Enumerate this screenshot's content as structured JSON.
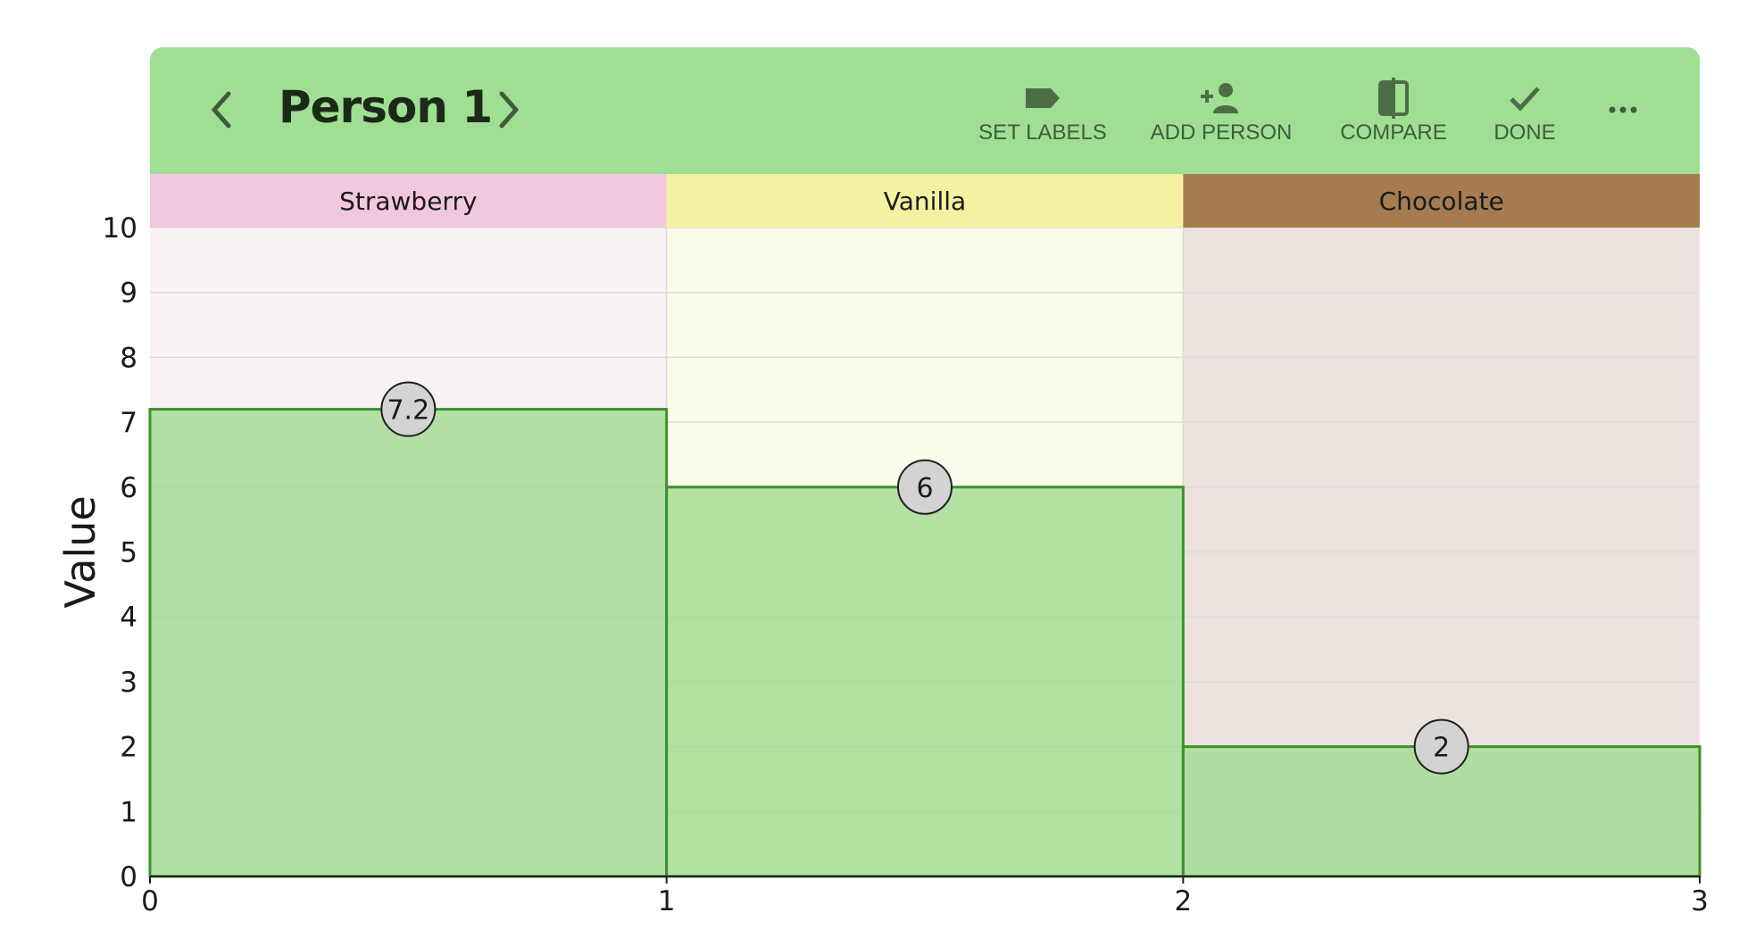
{
  "toolbar": {
    "title": "Person 1",
    "prev_icon": "chevron-left-icon",
    "next_icon": "chevron-right-icon",
    "actions": [
      {
        "label": "SET LABELS",
        "icon": "label-tag-icon"
      },
      {
        "label": "ADD PERSON",
        "icon": "person-add-icon"
      },
      {
        "label": "COMPARE",
        "icon": "compare-icon"
      },
      {
        "label": "DONE",
        "icon": "check-icon"
      }
    ],
    "more_icon": "more-horizontal-icon",
    "background": "#a0de94"
  },
  "chart_data": {
    "type": "bar",
    "categories": [
      "Strawberry",
      "Vanilla",
      "Chocolate"
    ],
    "values": [
      7.2,
      6,
      2
    ],
    "category_colors": [
      "#f2c8df",
      "#f2f2a0",
      "#a67b50"
    ],
    "category_fill_light": [
      "#f9f2f5",
      "#fafbeb",
      "#ece3df"
    ],
    "bar_color": "#a6dc95",
    "bar_edge": "#3d8f2e",
    "ylabel": "Value",
    "ylim": [
      0,
      10
    ],
    "yticks": [
      0,
      1,
      2,
      3,
      4,
      5,
      6,
      7,
      8,
      9,
      10
    ],
    "xlim": [
      0,
      3
    ],
    "xticks": [
      0,
      1,
      2,
      3
    ],
    "data_labels": [
      "7.2",
      "6",
      "2"
    ],
    "grid": true
  }
}
